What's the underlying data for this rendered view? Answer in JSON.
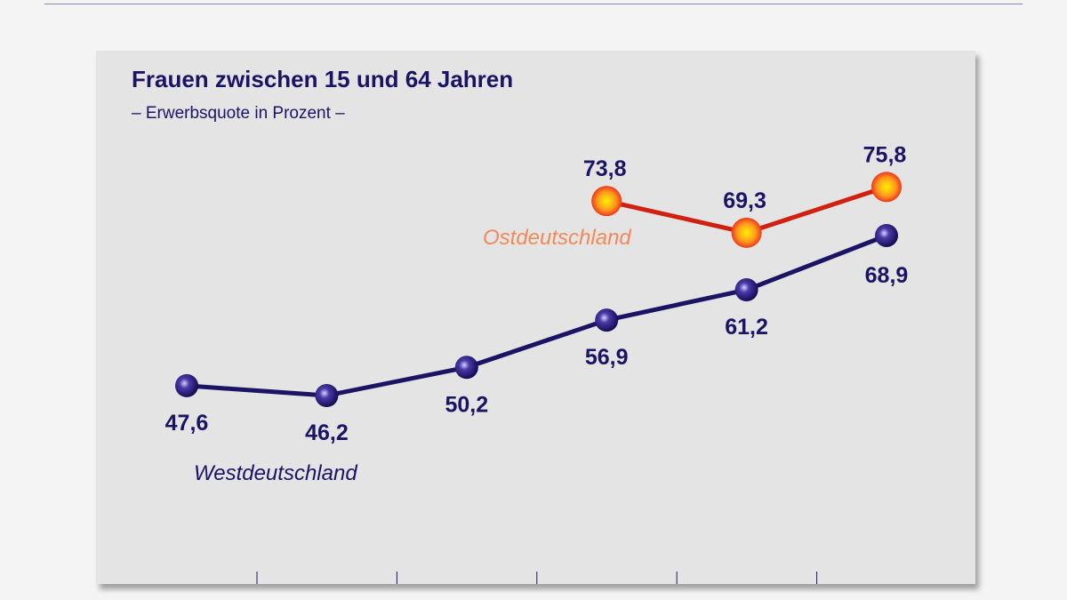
{
  "chart_data": {
    "type": "line",
    "title": "Frauen zwischen 15 und 64 Jahren",
    "subtitle": "– Erwerbsquote in Prozent –",
    "x": [
      1,
      2,
      3,
      4,
      5,
      6
    ],
    "x_tick_labels": [],
    "grid": false,
    "series": [
      {
        "name": "Westdeutschland",
        "color": "#1b1464",
        "values": [
          47.6,
          46.2,
          50.2,
          56.9,
          61.2,
          68.9
        ],
        "labels": [
          "47,6",
          "46,2",
          "50,2",
          "56,9",
          "61,2",
          "68,9"
        ]
      },
      {
        "name": "Ostdeutschland",
        "color": "#d0200f",
        "label_color": "#f08a5a",
        "values": [
          null,
          null,
          null,
          73.8,
          69.3,
          75.8
        ],
        "labels": [
          "",
          "",
          "",
          "73,8",
          "69,3",
          "75,8"
        ]
      }
    ]
  }
}
